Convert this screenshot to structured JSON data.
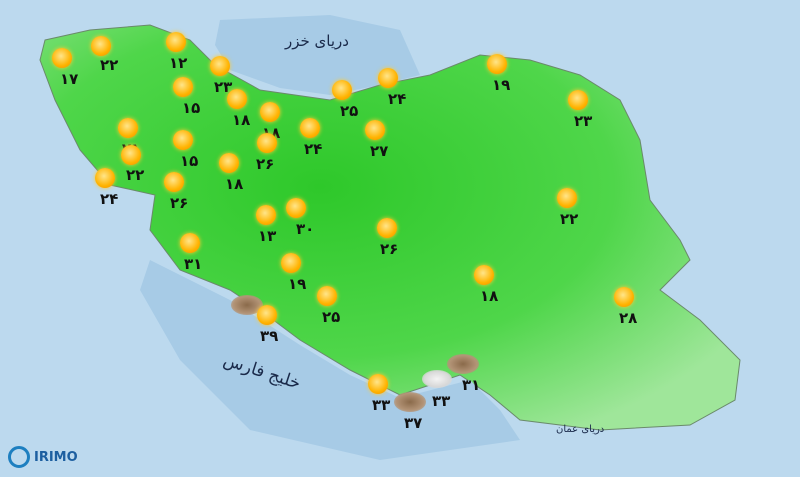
{
  "seas": {
    "caspian": "دریای خزر",
    "persian_gulf": "خلیج فارس",
    "oman": "دریای عمان"
  },
  "logo": {
    "text": "IRIMO"
  },
  "colors": {
    "land": "#3fd23a",
    "sea": "#bcd9ee",
    "sun": "#ffb300"
  },
  "stations": [
    {
      "icon": "sun",
      "temp": "۱۷"
    },
    {
      "icon": "sun",
      "temp": "۲۲"
    },
    {
      "icon": "sun",
      "temp": "۱۲"
    },
    {
      "icon": "sun",
      "temp": "۲۳"
    },
    {
      "icon": "sun",
      "temp": "۱۵"
    },
    {
      "icon": "sun",
      "temp": "۱۸"
    },
    {
      "icon": "sun",
      "temp": "۱۸"
    },
    {
      "icon": "sun",
      "temp": "۲۵"
    },
    {
      "icon": "sun",
      "temp": "۲۴"
    },
    {
      "icon": "sun",
      "temp": "۱۹"
    },
    {
      "icon": "sun",
      "temp": "۲۳"
    },
    {
      "icon": "sun",
      "temp": "۲۱"
    },
    {
      "icon": "sun",
      "temp": "۱۵"
    },
    {
      "icon": "sun",
      "temp": "۲۲"
    },
    {
      "icon": "sun",
      "temp": "۱۸"
    },
    {
      "icon": "sun",
      "temp": "۲۶"
    },
    {
      "icon": "sun",
      "temp": "۲۴"
    },
    {
      "icon": "sun",
      "temp": "۲۷"
    },
    {
      "icon": "sun",
      "temp": "۲۴"
    },
    {
      "icon": "sun",
      "temp": "۲۶"
    },
    {
      "icon": "sun",
      "temp": "۱۳"
    },
    {
      "icon": "sun",
      "temp": "۳۰"
    },
    {
      "icon": "sun",
      "temp": "۲۶"
    },
    {
      "icon": "sun",
      "temp": "۲۲"
    },
    {
      "icon": "sun",
      "temp": "۳۱"
    },
    {
      "icon": "sun",
      "temp": "۱۹"
    },
    {
      "icon": "sun",
      "temp": "۲۵"
    },
    {
      "icon": "sun-dust",
      "temp": "۳۹"
    },
    {
      "icon": "sun",
      "temp": "۱۸"
    },
    {
      "icon": "sun",
      "temp": "۲۸"
    },
    {
      "icon": "sun",
      "temp": "۳۳"
    },
    {
      "icon": "dust",
      "temp": "۳۷"
    },
    {
      "icon": "dust",
      "temp": "۳۱"
    },
    {
      "icon": "cloud",
      "temp": "۳۳"
    }
  ]
}
